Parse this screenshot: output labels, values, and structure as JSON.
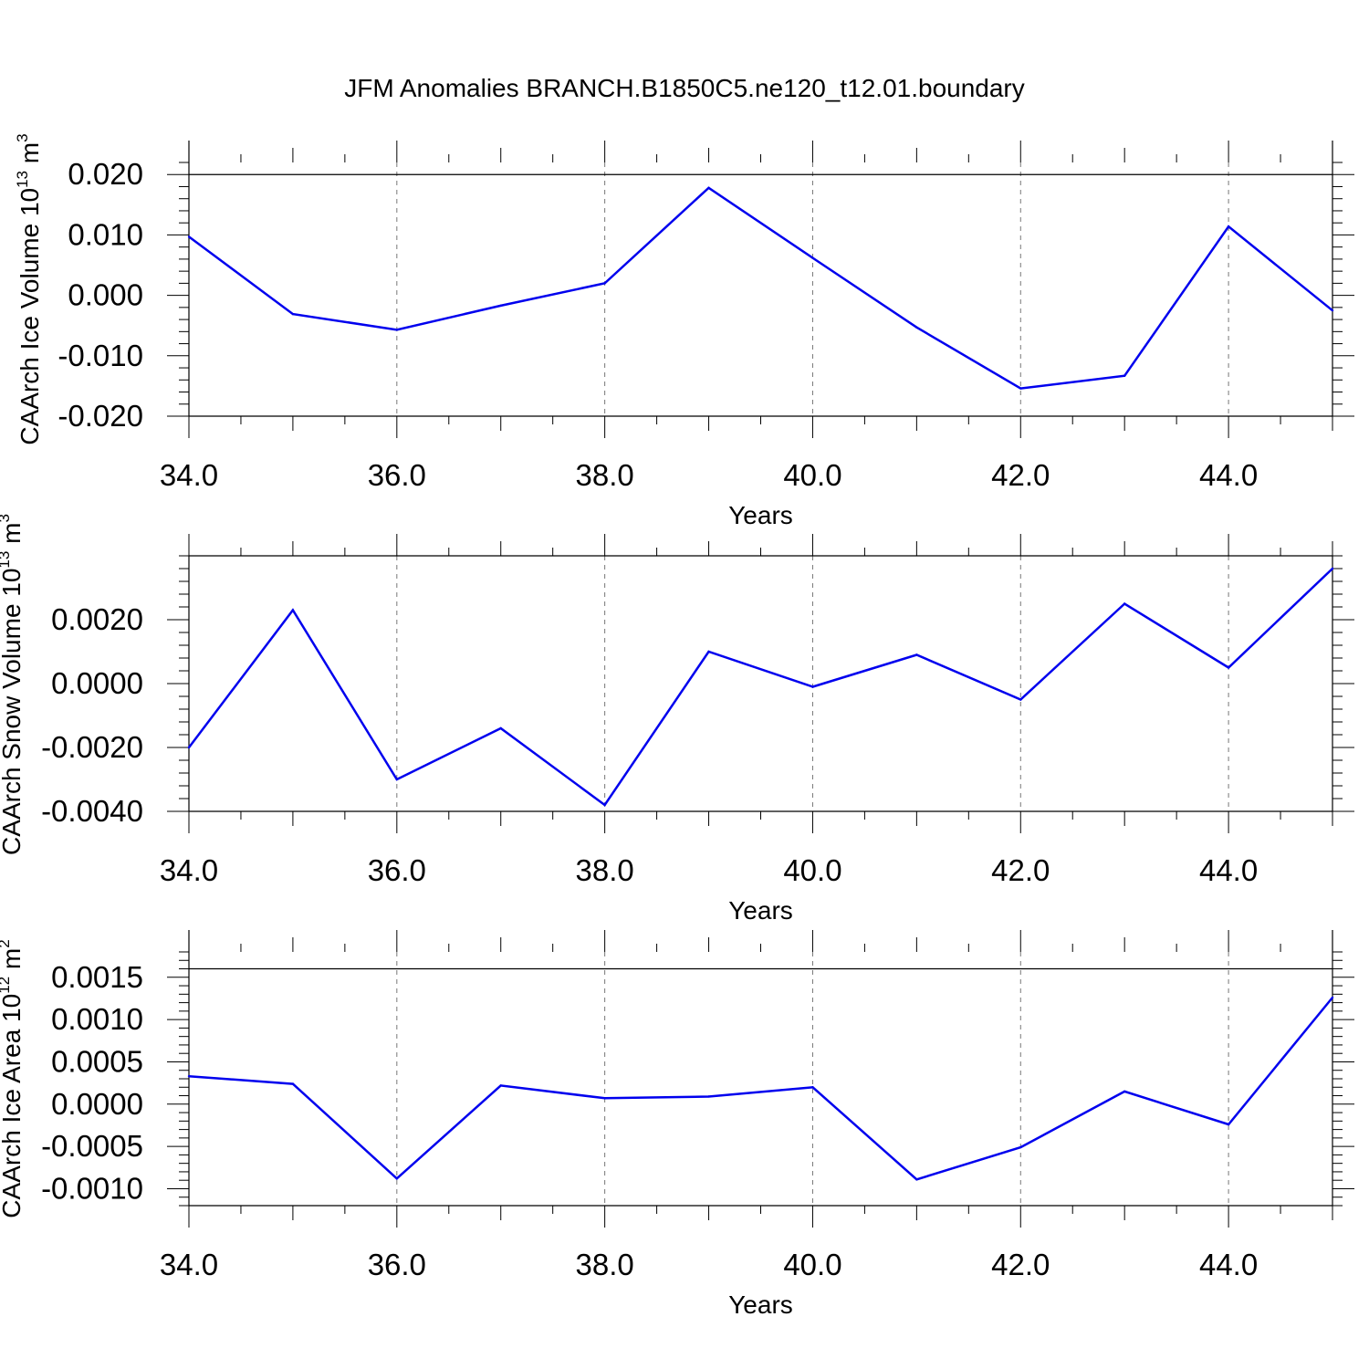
{
  "title": "JFM Anomalies BRANCH.B1850C5.ne120_t12.01.boundary",
  "chart_data": [
    {
      "type": "line",
      "title": "JFM Anomalies BRANCH.B1850C5.ne120_t12.01.boundary",
      "xlabel": "Years",
      "ylabel": {
        "prefix": "CAArch Ice Volume 10",
        "exponent": "13",
        "unit": " m",
        "unit_exponent": "3"
      },
      "xlim": [
        34,
        45
      ],
      "ylim": [
        -0.02,
        0.022
      ],
      "xticks": [
        34,
        36,
        38,
        40,
        42,
        44
      ],
      "xtick_labels": [
        "34.0",
        "36.0",
        "38.0",
        "40.0",
        "42.0",
        "44.0"
      ],
      "yticks": [
        -0.02,
        -0.01,
        0.0,
        0.01,
        0.02
      ],
      "ytick_labels": [
        "-0.020",
        "-0.010",
        "0.000",
        "0.010",
        "0.020"
      ],
      "ref_line": 0.02,
      "grid": "vertical dashed at labeled x ticks",
      "color": "#0000ee",
      "x": [
        34,
        35,
        36,
        37,
        38,
        39,
        40,
        41,
        42,
        43,
        44,
        45
      ],
      "values": [
        0.0097,
        -0.0031,
        -0.0057,
        -0.0017,
        0.002,
        0.0178,
        0.0062,
        -0.0053,
        -0.0154,
        -0.0133,
        0.0114,
        -0.0025
      ]
    },
    {
      "type": "line",
      "xlabel": "Years",
      "ylabel": {
        "prefix": "CAArch Snow Volume 10",
        "exponent": "13",
        "unit": " m",
        "unit_exponent": "3"
      },
      "xlim": [
        34,
        45
      ],
      "ylim": [
        -0.004,
        0.004
      ],
      "xticks": [
        34,
        36,
        38,
        40,
        42,
        44
      ],
      "xtick_labels": [
        "34.0",
        "36.0",
        "38.0",
        "40.0",
        "42.0",
        "44.0"
      ],
      "yticks": [
        -0.004,
        -0.002,
        0.0,
        0.002
      ],
      "ytick_labels": [
        "-0.0040",
        "-0.0020",
        "0.0000",
        "0.0020"
      ],
      "ref_line": null,
      "grid": "vertical dashed at labeled x ticks",
      "color": "#0000ee",
      "x": [
        34,
        35,
        36,
        37,
        38,
        39,
        40,
        41,
        42,
        43,
        44,
        45
      ],
      "values": [
        -0.002,
        0.0023,
        -0.003,
        -0.0014,
        -0.0038,
        0.001,
        -0.0001,
        0.0009,
        -0.0005,
        0.0025,
        0.0005,
        0.0036
      ]
    },
    {
      "type": "line",
      "xlabel": "Years",
      "ylabel": {
        "prefix": "CAArch Ice Area 10",
        "exponent": "12",
        "unit": " m",
        "unit_exponent": "2"
      },
      "xlim": [
        34,
        45
      ],
      "ylim": [
        -0.0012,
        0.0018
      ],
      "xticks": [
        34,
        36,
        38,
        40,
        42,
        44
      ],
      "xtick_labels": [
        "34.0",
        "36.0",
        "38.0",
        "40.0",
        "42.0",
        "44.0"
      ],
      "yticks": [
        -0.001,
        -0.0005,
        0.0,
        0.0005,
        0.001,
        0.0015
      ],
      "ytick_labels": [
        "-0.0010",
        "-0.0005",
        "0.0000",
        "0.0005",
        "0.0010",
        "0.0015"
      ],
      "ref_line": 0.0016,
      "grid": "vertical dashed at labeled x ticks",
      "color": "#0000ee",
      "x": [
        34,
        35,
        36,
        37,
        38,
        39,
        40,
        41,
        42,
        43,
        44,
        45
      ],
      "values": [
        0.00033,
        0.00024,
        -0.00088,
        0.00022,
        7e-05,
        9e-05,
        0.0002,
        -0.00089,
        -0.00051,
        0.00015,
        -0.00024,
        0.00126
      ]
    }
  ]
}
